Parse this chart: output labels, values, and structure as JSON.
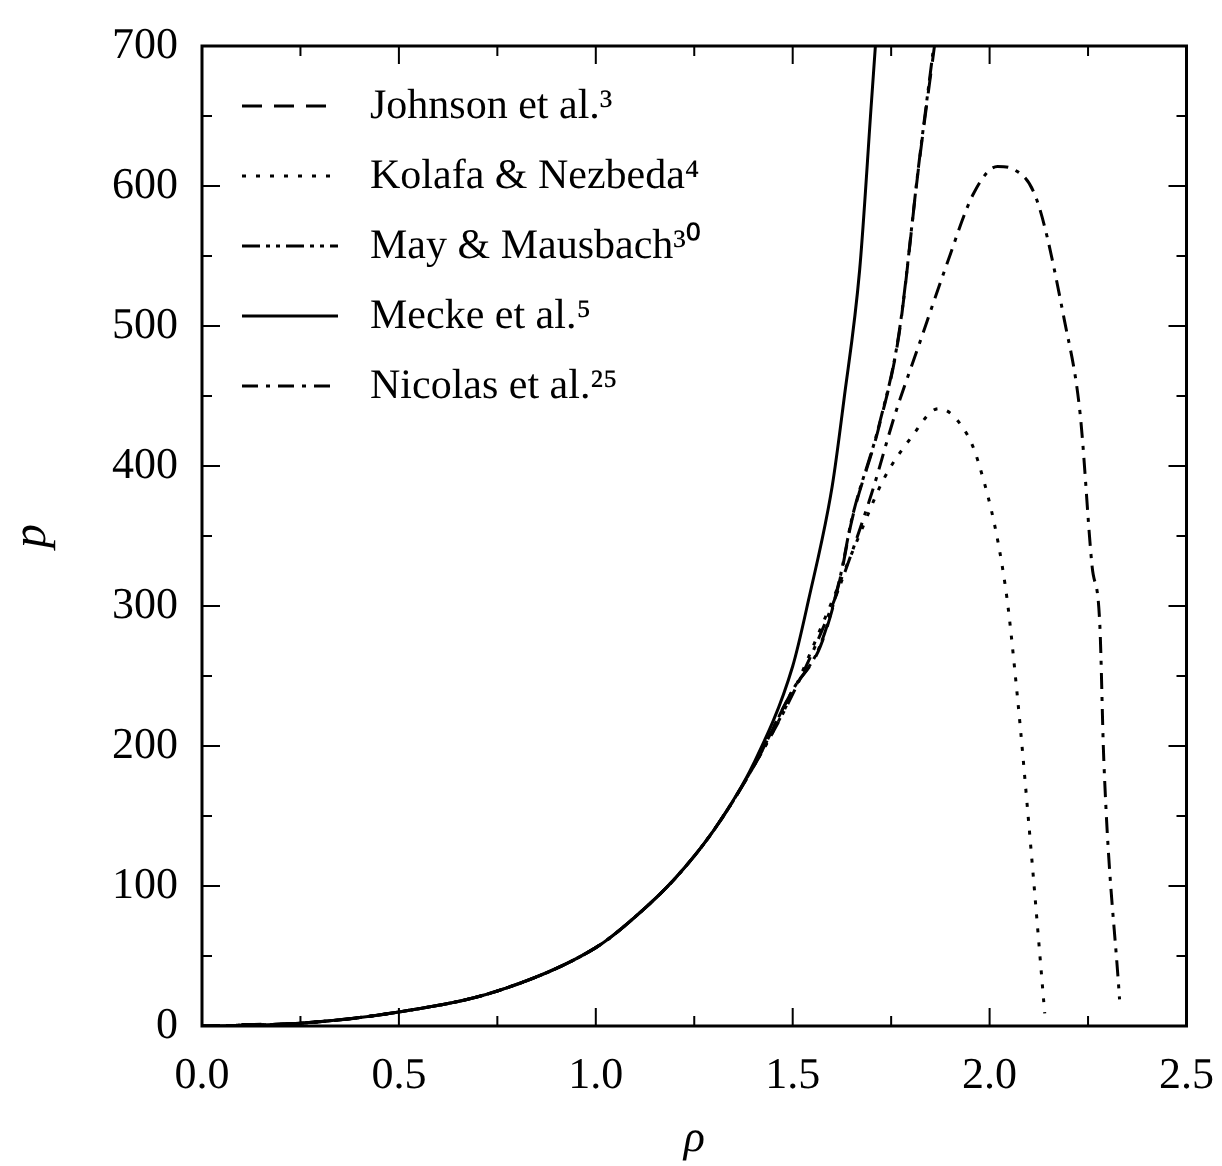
{
  "chart_data": {
    "type": "line",
    "xlabel": "ρ",
    "ylabel": "p",
    "xlim": [
      0,
      2.5
    ],
    "ylim": [
      0,
      700
    ],
    "xticks": [
      {
        "value": 0,
        "label": "0.0"
      },
      {
        "value": 0.25,
        "label": null
      },
      {
        "value": 0.5,
        "label": "0.5"
      },
      {
        "value": 0.75,
        "label": null
      },
      {
        "value": 1.0,
        "label": "1.0"
      },
      {
        "value": 1.25,
        "label": null
      },
      {
        "value": 1.5,
        "label": "1.5"
      },
      {
        "value": 1.75,
        "label": null
      },
      {
        "value": 2.0,
        "label": "2.0"
      },
      {
        "value": 2.25,
        "label": null
      },
      {
        "value": 2.5,
        "label": "2.5"
      }
    ],
    "yticks": [
      0,
      {
        "value": 50,
        "label": null
      },
      100,
      {
        "value": 150,
        "label": null
      },
      200,
      {
        "value": 250,
        "label": null
      },
      300,
      {
        "value": 350,
        "label": null
      },
      400,
      {
        "value": 450,
        "label": null
      },
      500,
      {
        "value": 550,
        "label": null
      },
      600,
      {
        "value": 650,
        "label": null
      },
      700
    ],
    "legend": "top left",
    "grid": false,
    "marker": "none",
    "series": [
      {
        "name": "Johnson et al.³",
        "color": "#000000",
        "line_style": "dashed",
        "x": [
          0.1,
          0.25,
          0.5,
          0.75,
          1.0,
          1.1,
          1.2,
          1.3,
          1.4,
          1.5,
          1.57,
          1.62,
          1.65,
          1.72,
          1.77,
          1.82,
          1.86
        ],
        "values": [
          1,
          2,
          10,
          25,
          56,
          78,
          105,
          140,
          185,
          240,
          271,
          319,
          361,
          429,
          494,
          614,
          700
        ]
      },
      {
        "name": "Kolafa & Nezbeda⁴",
        "color": "#000000",
        "line_style": "dotted",
        "x": [
          0,
          0.25,
          0.5,
          0.75,
          1.0,
          1.1,
          1.2,
          1.3,
          1.4,
          1.5,
          1.58,
          1.67,
          1.73,
          1.8,
          1.87,
          1.92,
          1.97,
          2.04,
          2.07,
          2.1,
          2.14
        ],
        "values": [
          0,
          2,
          10,
          25,
          56,
          78,
          105,
          140,
          185,
          238,
          290,
          351,
          390,
          420,
          441,
          432,
          404,
          314,
          237,
          143,
          9
        ]
      },
      {
        "name": "May & Mausbach³⁰",
        "color": "#000000",
        "line_style": "dashdotdot",
        "x": [
          0,
          0.25,
          0.5,
          0.75,
          1.0,
          1.1,
          1.2,
          1.3,
          1.4,
          1.5,
          1.57,
          1.62,
          1.65,
          1.72,
          1.77,
          1.82,
          1.856
        ],
        "values": [
          0,
          2,
          10,
          25,
          56,
          78,
          105,
          140,
          185,
          240,
          272,
          320,
          362,
          430,
          495,
          615,
          695
        ]
      },
      {
        "name": "Mecke et al.⁵",
        "color": "#000000",
        "line_style": "solid",
        "x": [
          0,
          0.25,
          0.5,
          0.75,
          1.0,
          1.1,
          1.2,
          1.3,
          1.4,
          1.5,
          1.54,
          1.6,
          1.63,
          1.67,
          1.7,
          1.71
        ],
        "values": [
          0,
          2,
          10,
          25,
          56,
          78,
          105,
          140,
          187,
          257,
          304,
          385,
          447,
          540,
          660,
          700
        ]
      },
      {
        "name": "Nicolas et al.²⁵",
        "color": "#000000",
        "line_style": "dashdot",
        "x": [
          0,
          0.25,
          0.5,
          0.75,
          1.0,
          1.1,
          1.2,
          1.3,
          1.4,
          1.5,
          1.6,
          1.7,
          1.76,
          1.82,
          1.89,
          1.96,
          2.02,
          2.06,
          2.12,
          2.19,
          2.23,
          2.26,
          2.28,
          2.29,
          2.33
        ],
        "values": [
          0,
          2,
          10,
          25,
          56,
          78,
          105,
          140,
          185,
          237,
          300,
          380,
          437,
          486,
          543,
          595,
          614,
          612,
          590,
          504,
          437,
          329,
          286,
          190,
          19
        ]
      }
    ]
  }
}
